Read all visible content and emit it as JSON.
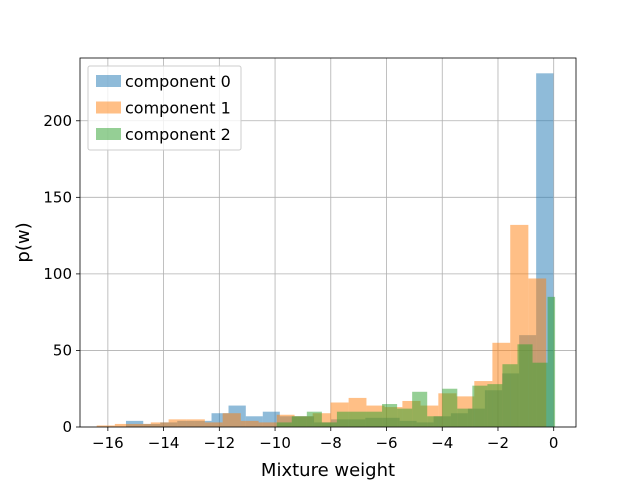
{
  "chart_data": {
    "type": "bar",
    "title": "",
    "xlabel": "Mixture weight",
    "ylabel": "p(w)",
    "xlim": [
      -17.0,
      0.8
    ],
    "ylim": [
      0,
      241
    ],
    "xticks": [
      -16,
      -14,
      -12,
      -10,
      -8,
      -6,
      -4,
      -2,
      0
    ],
    "xtick_labels": [
      "−16",
      "−14",
      "−12",
      "−10",
      "−8",
      "−6",
      "−4",
      "−2",
      "0"
    ],
    "yticks": [
      0,
      50,
      100,
      150,
      200
    ],
    "ytick_labels": [
      "0",
      "50",
      "100",
      "150",
      "200"
    ],
    "grid": true,
    "legend_position": "upper-left",
    "series": [
      {
        "name": "component 0",
        "color": "#1f77b4",
        "opacity": 0.5,
        "bins": [
          {
            "x0": -15.35,
            "x1": -14.73,
            "y": 4
          },
          {
            "x0": -14.73,
            "x1": -14.12,
            "y": 2
          },
          {
            "x0": -14.12,
            "x1": -13.51,
            "y": 3
          },
          {
            "x0": -13.51,
            "x1": -12.89,
            "y": 4
          },
          {
            "x0": -12.89,
            "x1": -12.28,
            "y": 4
          },
          {
            "x0": -12.28,
            "x1": -11.67,
            "y": 9
          },
          {
            "x0": -11.67,
            "x1": -11.05,
            "y": 14
          },
          {
            "x0": -11.05,
            "x1": -10.44,
            "y": 7
          },
          {
            "x0": -10.44,
            "x1": -9.83,
            "y": 10
          },
          {
            "x0": -9.83,
            "x1": -9.21,
            "y": 7
          },
          {
            "x0": -9.21,
            "x1": -8.6,
            "y": 7
          },
          {
            "x0": -8.6,
            "x1": -7.99,
            "y": 3
          },
          {
            "x0": -7.99,
            "x1": -7.37,
            "y": 5
          },
          {
            "x0": -7.37,
            "x1": -6.76,
            "y": 5
          },
          {
            "x0": -6.76,
            "x1": -6.15,
            "y": 6
          },
          {
            "x0": -6.15,
            "x1": -5.53,
            "y": 6
          },
          {
            "x0": -5.53,
            "x1": -4.92,
            "y": 4
          },
          {
            "x0": -4.92,
            "x1": -4.31,
            "y": 3
          },
          {
            "x0": -4.31,
            "x1": -3.69,
            "y": 7
          },
          {
            "x0": -3.69,
            "x1": -3.08,
            "y": 9
          },
          {
            "x0": -3.08,
            "x1": -2.47,
            "y": 12
          },
          {
            "x0": -2.47,
            "x1": -1.85,
            "y": 24
          },
          {
            "x0": -1.85,
            "x1": -1.24,
            "y": 35
          },
          {
            "x0": -1.24,
            "x1": -0.63,
            "y": 60
          },
          {
            "x0": -0.63,
            "x1": -0.01,
            "y": 231
          }
        ]
      },
      {
        "name": "component 1",
        "color": "#ff7f0e",
        "opacity": 0.5,
        "bins": [
          {
            "x0": -16.4,
            "x1": -15.75,
            "y": 1
          },
          {
            "x0": -15.75,
            "x1": -15.11,
            "y": 2
          },
          {
            "x0": -15.11,
            "x1": -14.46,
            "y": 2
          },
          {
            "x0": -14.46,
            "x1": -13.82,
            "y": 3
          },
          {
            "x0": -13.82,
            "x1": -13.17,
            "y": 5
          },
          {
            "x0": -13.17,
            "x1": -12.52,
            "y": 5
          },
          {
            "x0": -12.52,
            "x1": -11.88,
            "y": 3
          },
          {
            "x0": -11.88,
            "x1": -11.23,
            "y": 9
          },
          {
            "x0": -11.23,
            "x1": -10.59,
            "y": 4
          },
          {
            "x0": -10.59,
            "x1": -9.94,
            "y": 3
          },
          {
            "x0": -9.94,
            "x1": -9.3,
            "y": 8
          },
          {
            "x0": -9.3,
            "x1": -8.65,
            "y": 7
          },
          {
            "x0": -8.65,
            "x1": -8.01,
            "y": 9
          },
          {
            "x0": -8.01,
            "x1": -7.36,
            "y": 16
          },
          {
            "x0": -7.36,
            "x1": -6.72,
            "y": 19
          },
          {
            "x0": -6.72,
            "x1": -6.07,
            "y": 14
          },
          {
            "x0": -6.07,
            "x1": -5.43,
            "y": 13
          },
          {
            "x0": -5.43,
            "x1": -4.78,
            "y": 17
          },
          {
            "x0": -4.78,
            "x1": -4.14,
            "y": 14
          },
          {
            "x0": -4.14,
            "x1": -3.49,
            "y": 22
          },
          {
            "x0": -3.49,
            "x1": -2.85,
            "y": 20
          },
          {
            "x0": -2.85,
            "x1": -2.2,
            "y": 30
          },
          {
            "x0": -2.2,
            "x1": -1.56,
            "y": 55
          },
          {
            "x0": -1.56,
            "x1": -0.91,
            "y": 132
          },
          {
            "x0": -0.91,
            "x1": -0.27,
            "y": 97
          }
        ]
      },
      {
        "name": "component 2",
        "color": "#2ca02c",
        "opacity": 0.5,
        "bins": [
          {
            "x0": -9.94,
            "x1": -9.4,
            "y": 3
          },
          {
            "x0": -9.4,
            "x1": -8.86,
            "y": 7
          },
          {
            "x0": -8.86,
            "x1": -8.32,
            "y": 10
          },
          {
            "x0": -8.32,
            "x1": -7.78,
            "y": 3
          },
          {
            "x0": -7.78,
            "x1": -7.24,
            "y": 10
          },
          {
            "x0": -7.24,
            "x1": -6.7,
            "y": 10
          },
          {
            "x0": -6.7,
            "x1": -6.16,
            "y": 10
          },
          {
            "x0": -6.16,
            "x1": -5.62,
            "y": 15
          },
          {
            "x0": -5.62,
            "x1": -5.08,
            "y": 12
          },
          {
            "x0": -5.08,
            "x1": -4.54,
            "y": 23
          },
          {
            "x0": -4.54,
            "x1": -4.0,
            "y": 7
          },
          {
            "x0": -4.0,
            "x1": -3.46,
            "y": 25
          },
          {
            "x0": -3.46,
            "x1": -2.92,
            "y": 12
          },
          {
            "x0": -2.92,
            "x1": -2.38,
            "y": 27
          },
          {
            "x0": -2.38,
            "x1": -1.84,
            "y": 28
          },
          {
            "x0": -1.84,
            "x1": -1.3,
            "y": 41
          },
          {
            "x0": -1.3,
            "x1": -0.76,
            "y": 54
          },
          {
            "x0": -0.76,
            "x1": -0.22,
            "y": 42
          },
          {
            "x0": -0.22,
            "x1": 0.05,
            "y": 85
          }
        ]
      }
    ]
  }
}
